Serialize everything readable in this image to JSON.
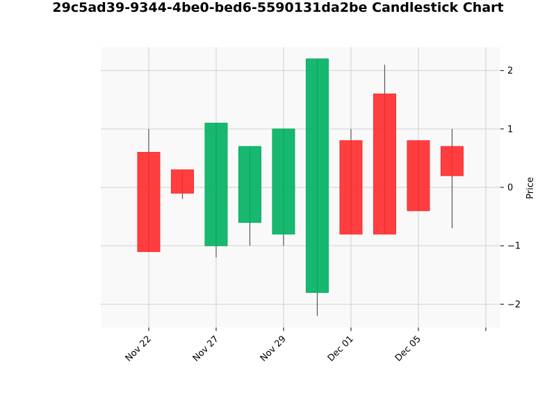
{
  "chart_data": {
    "type": "candlestick",
    "title": "29c5ad39-9344-4be0-bed6-5590131da2be Candlestick Chart",
    "xlabel": "",
    "ylabel": "Price",
    "ylim": [
      -2.4,
      2.4
    ],
    "yticks": [
      -2,
      -1,
      0,
      1,
      2
    ],
    "ytick_labels": [
      "−2",
      "−1",
      "0",
      "1",
      "2"
    ],
    "xticks": [
      {
        "index": 0,
        "label": "Nov 22"
      },
      {
        "index": 2,
        "label": "Nov 27"
      },
      {
        "index": 4,
        "label": "Nov 29"
      },
      {
        "index": 6,
        "label": "Dec 01"
      },
      {
        "index": 8,
        "label": "Dec 05"
      },
      {
        "index": 10,
        "label": ""
      }
    ],
    "grid": true,
    "colors": {
      "up": "#00b060",
      "down": "#ff2a2a",
      "wick": "#555555",
      "background": "#f9f9f9",
      "grid": "#d0d0d0"
    },
    "candles": [
      {
        "open": 0.6,
        "high": 1.0,
        "low": -1.1,
        "close": -1.1
      },
      {
        "open": 0.3,
        "high": 0.3,
        "low": -0.2,
        "close": -0.1
      },
      {
        "open": -1.0,
        "high": 1.1,
        "low": -1.2,
        "close": 1.1
      },
      {
        "open": -0.6,
        "high": 0.7,
        "low": -1.0,
        "close": 0.7
      },
      {
        "open": -0.8,
        "high": 1.0,
        "low": -1.0,
        "close": 1.0
      },
      {
        "open": -1.8,
        "high": 2.2,
        "low": -2.2,
        "close": 2.2
      },
      {
        "open": 0.8,
        "high": 1.0,
        "low": -0.8,
        "close": -0.8
      },
      {
        "open": 1.6,
        "high": 2.1,
        "low": -0.8,
        "close": -0.8
      },
      {
        "open": 0.8,
        "high": 0.8,
        "low": -0.4,
        "close": -0.4
      },
      {
        "open": 0.7,
        "high": 1.0,
        "low": -0.7,
        "close": 0.2
      }
    ]
  }
}
